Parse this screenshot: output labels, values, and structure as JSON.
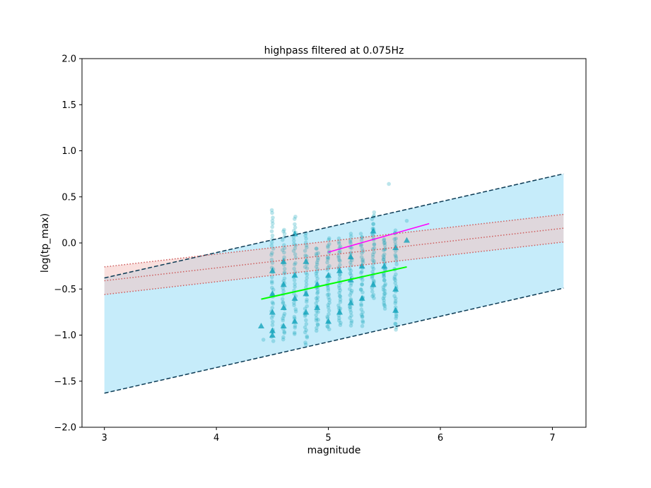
{
  "chart_data": {
    "type": "scatter",
    "title": "highpass filtered at 0.075Hz",
    "xlabel": "magnitude",
    "ylabel": "log(tp_max)",
    "xlim": [
      2.8,
      7.3
    ],
    "ylim": [
      -2.0,
      2.0
    ],
    "xticks": [
      "3",
      "4",
      "5",
      "6",
      "7"
    ],
    "xtick_values": [
      3,
      4,
      5,
      6,
      7
    ],
    "yticks": [
      "2.0",
      "1.5",
      "1.0",
      "0.5",
      "0.0",
      "−0.5",
      "−1.0",
      "−1.5",
      "−2.0"
    ],
    "ytick_values": [
      2.0,
      1.5,
      1.0,
      0.5,
      0.0,
      -0.5,
      -1.0,
      -1.5,
      -2.0
    ],
    "grid": false,
    "colors": {
      "blue_band": "#c6ecfa",
      "red_band": "#f4c6c2",
      "dashed_line": "#0b3a54",
      "dotted_line": "#cd5c5c",
      "points": "#0aa0b8",
      "green_fit": "#00ff00",
      "magenta_fit": "#ff00ff"
    },
    "blue_band": {
      "x": [
        3.0,
        7.1
      ],
      "upper": [
        -0.38,
        0.75
      ],
      "lower": [
        -1.63,
        -0.49
      ]
    },
    "red_band": {
      "x": [
        3.0,
        7.1
      ],
      "upper": [
        -0.26,
        0.31
      ],
      "center": [
        -0.41,
        0.16
      ],
      "lower": [
        -0.56,
        0.01
      ]
    },
    "green_fit": {
      "x": [
        4.4,
        5.7
      ],
      "y": [
        -0.61,
        -0.26
      ]
    },
    "magenta_fit": {
      "x": [
        5.0,
        5.9
      ],
      "y": [
        -0.1,
        0.21
      ]
    },
    "circle_columns": [
      {
        "x": 4.5,
        "y_range": [
          -1.05,
          0.35
        ]
      },
      {
        "x": 4.6,
        "y_range": [
          -1.05,
          0.15
        ]
      },
      {
        "x": 4.7,
        "y_range": [
          -1.0,
          0.28
        ]
      },
      {
        "x": 4.8,
        "y_range": [
          -1.1,
          0.1
        ]
      },
      {
        "x": 4.9,
        "y_range": [
          -0.95,
          -0.05
        ]
      },
      {
        "x": 5.0,
        "y_range": [
          -0.95,
          0.05
        ]
      },
      {
        "x": 5.1,
        "y_range": [
          -0.9,
          0.05
        ]
      },
      {
        "x": 5.2,
        "y_range": [
          -0.9,
          0.1
        ]
      },
      {
        "x": 5.3,
        "y_range": [
          -0.9,
          0.1
        ]
      },
      {
        "x": 5.4,
        "y_range": [
          -0.6,
          0.32
        ]
      },
      {
        "x": 5.5,
        "y_range": [
          -0.7,
          0.05
        ]
      },
      {
        "x": 5.6,
        "y_range": [
          -0.95,
          0.15
        ]
      }
    ],
    "outlier_circles": [
      {
        "x": 5.54,
        "y": 0.64
      },
      {
        "x": 5.7,
        "y": 0.24
      },
      {
        "x": 4.42,
        "y": -1.05
      }
    ],
    "triangles": [
      {
        "x": 4.4,
        "y": -0.9
      },
      {
        "x": 4.5,
        "y": -0.3
      },
      {
        "x": 4.5,
        "y": -0.55
      },
      {
        "x": 4.5,
        "y": -0.75
      },
      {
        "x": 4.5,
        "y": -0.95
      },
      {
        "x": 4.5,
        "y": -1.0
      },
      {
        "x": 4.6,
        "y": -0.2
      },
      {
        "x": 4.6,
        "y": -0.45
      },
      {
        "x": 4.6,
        "y": -0.7
      },
      {
        "x": 4.6,
        "y": -0.9
      },
      {
        "x": 4.7,
        "y": 0.1
      },
      {
        "x": 4.7,
        "y": -0.35
      },
      {
        "x": 4.7,
        "y": -0.6
      },
      {
        "x": 4.7,
        "y": -0.85
      },
      {
        "x": 4.8,
        "y": -0.2
      },
      {
        "x": 4.8,
        "y": -0.55
      },
      {
        "x": 4.8,
        "y": -0.75
      },
      {
        "x": 4.9,
        "y": -0.45
      },
      {
        "x": 4.9,
        "y": -0.7
      },
      {
        "x": 5.0,
        "y": -0.35
      },
      {
        "x": 5.0,
        "y": -0.85
      },
      {
        "x": 5.1,
        "y": -0.3
      },
      {
        "x": 5.1,
        "y": -0.75
      },
      {
        "x": 5.2,
        "y": -0.15
      },
      {
        "x": 5.2,
        "y": -0.4
      },
      {
        "x": 5.2,
        "y": -0.65
      },
      {
        "x": 5.3,
        "y": -0.25
      },
      {
        "x": 5.3,
        "y": -0.6
      },
      {
        "x": 5.4,
        "y": 0.13
      },
      {
        "x": 5.4,
        "y": -0.45
      },
      {
        "x": 5.5,
        "y": -0.25
      },
      {
        "x": 5.6,
        "y": -0.05
      },
      {
        "x": 5.6,
        "y": -0.5
      },
      {
        "x": 5.6,
        "y": -0.73
      },
      {
        "x": 5.7,
        "y": 0.03
      }
    ]
  }
}
